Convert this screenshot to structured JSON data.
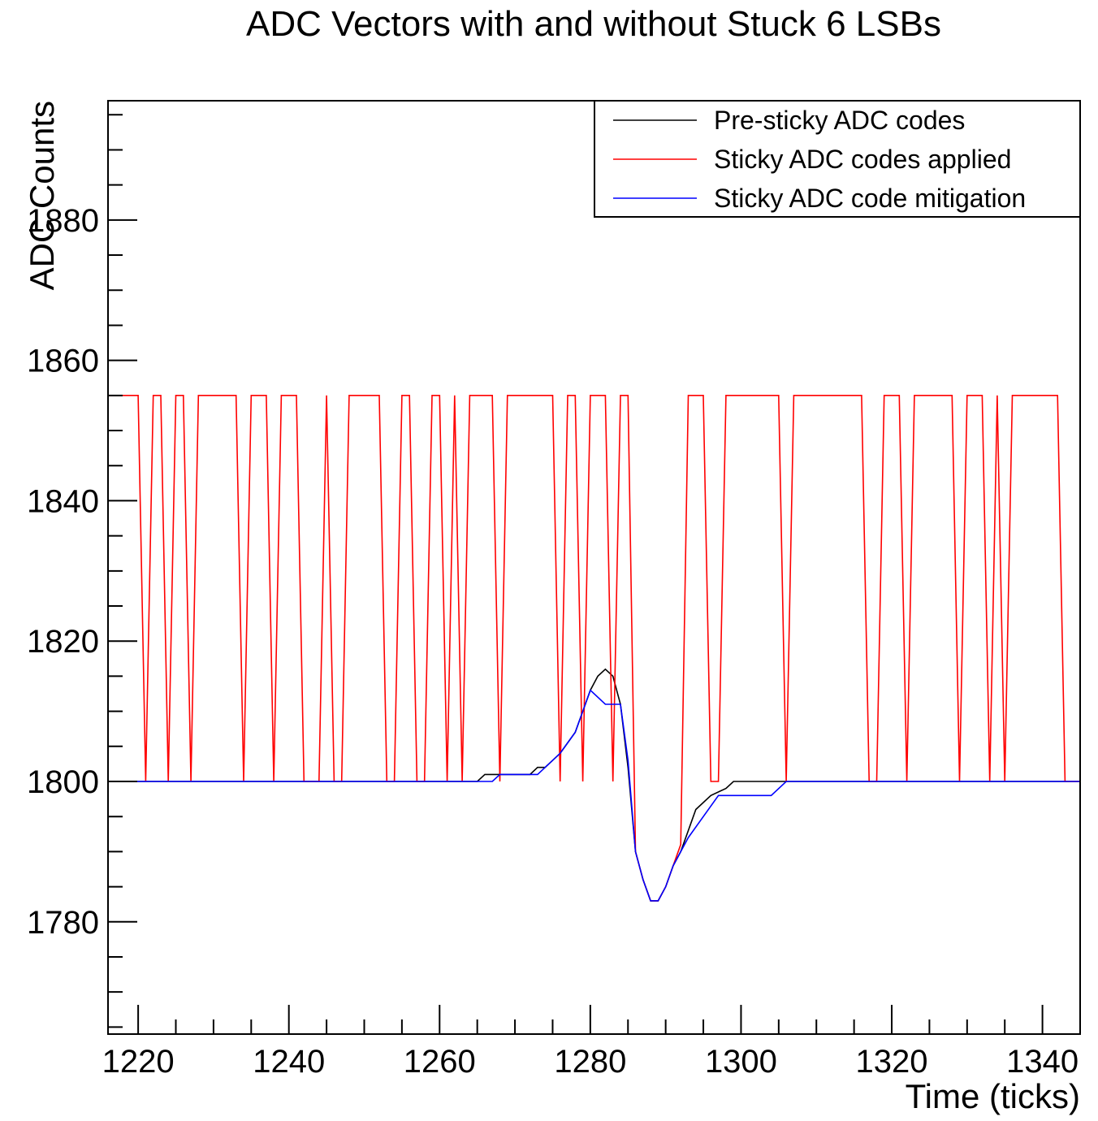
{
  "chart_data": {
    "type": "line",
    "title": "ADC Vectors with and without Stuck 6 LSBs",
    "xlabel": "Time (ticks)",
    "ylabel": "ADC Counts",
    "xlim": [
      1216,
      1345
    ],
    "ylim": [
      1764,
      1897
    ],
    "x_ticks": [
      1220,
      1240,
      1260,
      1280,
      1300,
      1320,
      1340
    ],
    "y_ticks": [
      1780,
      1800,
      1820,
      1840,
      1860,
      1880
    ],
    "grid": false,
    "legend_position": "top-right",
    "colors": {
      "pre": "#000000",
      "sticky": "#ff0000",
      "mitigation": "#0000ff"
    },
    "series": [
      {
        "name": "Pre-sticky ADC codes",
        "color": "#000000",
        "points": [
          [
            1216,
            1800
          ],
          [
            1265,
            1800
          ],
          [
            1266,
            1801
          ],
          [
            1268,
            1801
          ],
          [
            1272,
            1801
          ],
          [
            1273,
            1802
          ],
          [
            1274,
            1802
          ],
          [
            1276,
            1804
          ],
          [
            1278,
            1807
          ],
          [
            1279,
            1810
          ],
          [
            1280,
            1813
          ],
          [
            1281,
            1815
          ],
          [
            1282,
            1816
          ],
          [
            1283,
            1815
          ],
          [
            1284,
            1811
          ],
          [
            1285,
            1802
          ],
          [
            1286,
            1790
          ],
          [
            1287,
            1786
          ],
          [
            1288,
            1783
          ],
          [
            1289,
            1783
          ],
          [
            1290,
            1785
          ],
          [
            1291,
            1788
          ],
          [
            1292,
            1790
          ],
          [
            1293,
            1793
          ],
          [
            1294,
            1796
          ],
          [
            1296,
            1798
          ],
          [
            1298,
            1799
          ],
          [
            1299,
            1800
          ],
          [
            1306,
            1800
          ],
          [
            1345,
            1800
          ]
        ]
      },
      {
        "name": "Sticky ADC codes applied",
        "color": "#ff0000",
        "points": [
          [
            1216,
            1855
          ],
          [
            1220,
            1855
          ],
          [
            1221,
            1800
          ],
          [
            1222,
            1855
          ],
          [
            1223,
            1855
          ],
          [
            1224,
            1800
          ],
          [
            1225,
            1855
          ],
          [
            1226,
            1855
          ],
          [
            1227,
            1800
          ],
          [
            1228,
            1855
          ],
          [
            1233,
            1855
          ],
          [
            1234,
            1800
          ],
          [
            1235,
            1855
          ],
          [
            1237,
            1855
          ],
          [
            1238,
            1800
          ],
          [
            1239,
            1855
          ],
          [
            1241,
            1855
          ],
          [
            1242,
            1800
          ],
          [
            1244,
            1800
          ],
          [
            1245,
            1855
          ],
          [
            1246,
            1800
          ],
          [
            1247,
            1800
          ],
          [
            1248,
            1855
          ],
          [
            1252,
            1855
          ],
          [
            1253,
            1800
          ],
          [
            1254,
            1800
          ],
          [
            1255,
            1855
          ],
          [
            1256,
            1855
          ],
          [
            1257,
            1800
          ],
          [
            1258,
            1800
          ],
          [
            1259,
            1855
          ],
          [
            1260,
            1855
          ],
          [
            1261,
            1800
          ],
          [
            1262,
            1855
          ],
          [
            1263,
            1800
          ],
          [
            1264,
            1855
          ],
          [
            1267,
            1855
          ],
          [
            1268,
            1800
          ],
          [
            1269,
            1855
          ],
          [
            1275,
            1855
          ],
          [
            1276,
            1800
          ],
          [
            1277,
            1855
          ],
          [
            1278,
            1855
          ],
          [
            1279,
            1800
          ],
          [
            1280,
            1855
          ],
          [
            1282,
            1855
          ],
          [
            1283,
            1800
          ],
          [
            1284,
            1855
          ],
          [
            1285,
            1855
          ],
          [
            1286,
            1790
          ],
          [
            1287,
            1786
          ],
          [
            1288,
            1783
          ],
          [
            1289,
            1783
          ],
          [
            1290,
            1785
          ],
          [
            1291,
            1788
          ],
          [
            1292,
            1791
          ],
          [
            1293,
            1855
          ],
          [
            1295,
            1855
          ],
          [
            1296,
            1800
          ],
          [
            1297,
            1800
          ],
          [
            1298,
            1855
          ],
          [
            1305,
            1855
          ],
          [
            1306,
            1800
          ],
          [
            1307,
            1855
          ],
          [
            1316,
            1855
          ],
          [
            1317,
            1800
          ],
          [
            1318,
            1800
          ],
          [
            1319,
            1855
          ],
          [
            1321,
            1855
          ],
          [
            1322,
            1800
          ],
          [
            1323,
            1855
          ],
          [
            1328,
            1855
          ],
          [
            1329,
            1800
          ],
          [
            1330,
            1855
          ],
          [
            1332,
            1855
          ],
          [
            1333,
            1800
          ],
          [
            1334,
            1855
          ],
          [
            1335,
            1800
          ],
          [
            1336,
            1855
          ],
          [
            1342,
            1855
          ],
          [
            1343,
            1800
          ],
          [
            1345,
            1800
          ]
        ]
      },
      {
        "name": "Sticky ADC code mitigation",
        "color": "#0000ff",
        "points": [
          [
            1216,
            1800
          ],
          [
            1267,
            1800
          ],
          [
            1268,
            1801
          ],
          [
            1273,
            1801
          ],
          [
            1276,
            1804
          ],
          [
            1278,
            1807
          ],
          [
            1279,
            1810
          ],
          [
            1280,
            1813
          ],
          [
            1282,
            1811
          ],
          [
            1284,
            1811
          ],
          [
            1285,
            1803
          ],
          [
            1286,
            1790
          ],
          [
            1287,
            1786
          ],
          [
            1288,
            1783
          ],
          [
            1289,
            1783
          ],
          [
            1290,
            1785
          ],
          [
            1291,
            1788
          ],
          [
            1293,
            1792
          ],
          [
            1297,
            1798
          ],
          [
            1304,
            1798
          ],
          [
            1306,
            1800
          ],
          [
            1345,
            1800
          ]
        ]
      }
    ]
  }
}
